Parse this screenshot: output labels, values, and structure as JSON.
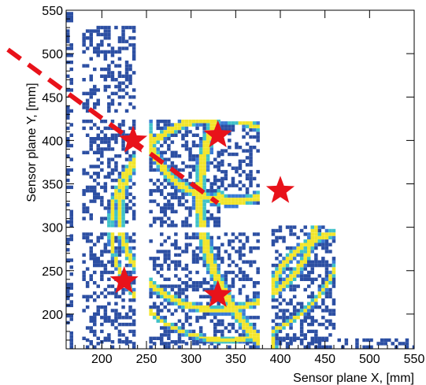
{
  "chart_data": {
    "type": "heatmap",
    "title": "",
    "xlabel": "Sensor plane X, [mm]",
    "ylabel": "Sensor plane Y, [mm]",
    "xlim": [
      160,
      550
    ],
    "ylim": [
      160,
      550
    ],
    "x_ticks": [
      200,
      250,
      300,
      350,
      400,
      450,
      500,
      550
    ],
    "y_ticks": [
      200,
      250,
      300,
      350,
      400,
      450,
      500,
      550
    ],
    "grid": false,
    "colormap": [
      "#2c4fa3",
      "#3a7bd5",
      "#3fc1c9",
      "#f2e52b"
    ],
    "sensor_tiles": [
      {
        "x": [
          160,
          168
        ],
        "y": [
          300,
          550
        ]
      },
      {
        "x": [
          160,
          168
        ],
        "y": [
          160,
          292
        ]
      },
      {
        "x": [
          178,
          238
        ],
        "y": [
          432,
          532
        ]
      },
      {
        "x": [
          178,
          238
        ],
        "y": [
          300,
          422
        ]
      },
      {
        "x": [
          178,
          238
        ],
        "y": [
          166,
          292
        ]
      },
      {
        "x": [
          178,
          238
        ],
        "y": [
          160,
          172
        ]
      },
      {
        "x": [
          253,
          333
        ],
        "y": [
          300,
          422
        ]
      },
      {
        "x": [
          253,
          333
        ],
        "y": [
          166,
          292
        ]
      },
      {
        "x": [
          253,
          333
        ],
        "y": [
          160,
          172
        ]
      },
      {
        "x": [
          333,
          375
        ],
        "y": [
          322,
          422
        ]
      },
      {
        "x": [
          333,
          375
        ],
        "y": [
          166,
          292
        ]
      },
      {
        "x": [
          333,
          375
        ],
        "y": [
          160,
          172
        ]
      },
      {
        "x": [
          390,
          460
        ],
        "y": [
          166,
          300
        ]
      },
      {
        "x": [
          390,
          460
        ],
        "y": [
          160,
          172
        ]
      },
      {
        "x": [
          460,
          550
        ],
        "y": [
          160,
          172
        ]
      }
    ],
    "rings": [
      {
        "cx": 340,
        "cy": 300,
        "r": 130,
        "width": 4
      },
      {
        "cx": 550,
        "cy": 335,
        "r": 240,
        "width": 8
      },
      {
        "cx": 345,
        "cy": 425,
        "r": 95,
        "width": 7
      },
      {
        "cx": 330,
        "cy": 315,
        "r": 110,
        "width": 6
      },
      {
        "cx": 480,
        "cy": 200,
        "r": 95,
        "width": 6
      }
    ],
    "blob": {
      "x": 330,
      "y": 332,
      "r": 9
    },
    "stars": [
      {
        "x": 235,
        "y": 400
      },
      {
        "x": 330,
        "y": 406
      },
      {
        "x": 400,
        "y": 342
      },
      {
        "x": 225,
        "y": 238
      },
      {
        "x": 330,
        "y": 222
      }
    ],
    "dashed_line": {
      "x": [
        132,
        330
      ],
      "y": [
        540,
        328
      ]
    }
  }
}
